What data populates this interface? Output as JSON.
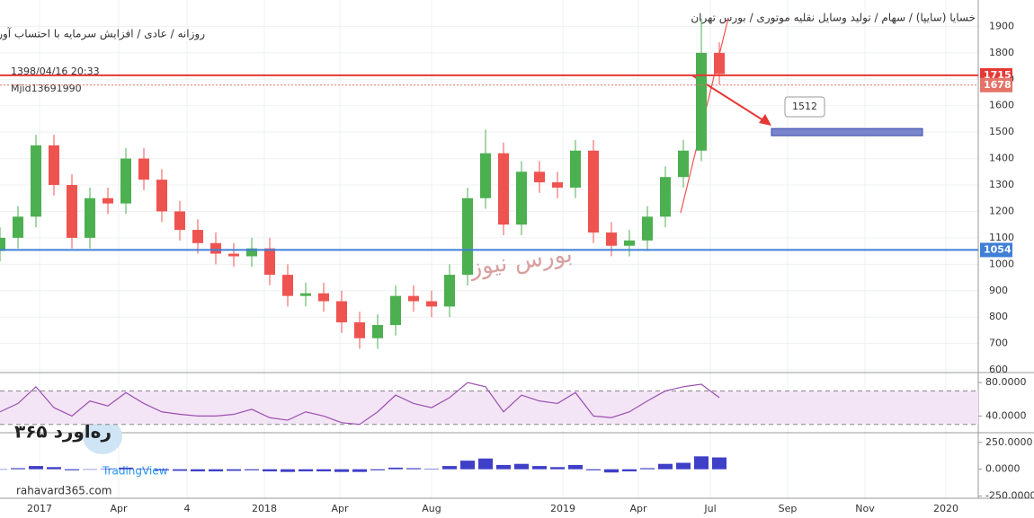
{
  "chart_data": {
    "type": "candlestick",
    "title": "خسایا (سایپا) / سهام / تولید وسایل نقلیه موتوری / بورس تهران",
    "subtitle": "روزانه / عادی / افزایش سرمایه با احتساب آورده",
    "timestamp": "1398/04/16 20:33",
    "author": "Mjid13691990",
    "watermark": "بورس نیوز",
    "logo_text": "ره‌آورد ۳۶۵",
    "logo_url": "rahavard365.com",
    "platform": "TradingView",
    "xlim": [
      0,
      544
    ],
    "xticks": [
      {
        "value": 22,
        "label": "2017"
      },
      {
        "value": 66,
        "label": "Apr"
      },
      {
        "value": 104,
        "label": "4"
      },
      {
        "value": 147,
        "label": "2018"
      },
      {
        "value": 189,
        "label": "Apr"
      },
      {
        "value": 240,
        "label": "Aug"
      },
      {
        "value": 313,
        "label": "2019"
      },
      {
        "value": 355,
        "label": "Apr"
      },
      {
        "value": 395,
        "label": "Jul"
      },
      {
        "value": 438,
        "label": "Sep"
      },
      {
        "value": 481,
        "label": "Nov"
      },
      {
        "value": 526,
        "label": "2020"
      }
    ],
    "x": [
      0,
      10,
      20,
      30,
      40,
      50,
      60,
      70,
      80,
      90,
      100,
      110,
      120,
      130,
      140,
      150,
      160,
      170,
      180,
      190,
      200,
      210,
      220,
      230,
      240,
      250,
      260,
      270,
      280,
      290,
      300,
      310,
      320,
      330,
      340,
      350,
      360,
      370,
      380,
      390,
      400
    ],
    "open": [
      1050,
      1100,
      1180,
      1450,
      1300,
      1100,
      1250,
      1230,
      1400,
      1320,
      1200,
      1130,
      1080,
      1040,
      1030,
      1060,
      960,
      880,
      890,
      860,
      780,
      720,
      770,
      880,
      860,
      840,
      960,
      1250,
      1420,
      1150,
      1350,
      1310,
      1290,
      1430,
      1120,
      1070,
      1090,
      1180,
      1330,
      1430,
      1800
    ],
    "high": [
      1140,
      1220,
      1490,
      1490,
      1340,
      1290,
      1290,
      1440,
      1440,
      1360,
      1240,
      1170,
      1120,
      1080,
      1100,
      1100,
      1000,
      930,
      930,
      900,
      820,
      810,
      920,
      920,
      900,
      1000,
      1290,
      1510,
      1460,
      1390,
      1390,
      1350,
      1470,
      1470,
      1160,
      1130,
      1220,
      1370,
      1470,
      1930,
      1840
    ],
    "low": [
      1010,
      1060,
      1140,
      1260,
      1060,
      1060,
      1190,
      1190,
      1280,
      1160,
      1090,
      1040,
      1000,
      990,
      990,
      920,
      840,
      840,
      820,
      740,
      680,
      680,
      730,
      820,
      800,
      800,
      920,
      1210,
      1110,
      1110,
      1270,
      1250,
      1250,
      1080,
      1030,
      1030,
      1050,
      1140,
      1290,
      1390,
      1680
    ],
    "close": [
      1100,
      1180,
      1450,
      1300,
      1100,
      1250,
      1230,
      1400,
      1320,
      1200,
      1130,
      1080,
      1040,
      1030,
      1060,
      960,
      880,
      890,
      860,
      780,
      720,
      770,
      880,
      860,
      840,
      960,
      1250,
      1420,
      1150,
      1350,
      1310,
      1290,
      1430,
      1120,
      1070,
      1090,
      1180,
      1330,
      1430,
      1800,
      1720
    ],
    "up_color": "#4caf50",
    "down_color": "#ef5350",
    "ylim": [
      590,
      2000
    ],
    "yticks": [
      600,
      700,
      800,
      900,
      1000,
      1100,
      1200,
      1300,
      1400,
      1500,
      1600,
      1700,
      1800,
      1900
    ],
    "price_lines": [
      {
        "value": 1715,
        "color": "#e53935"
      },
      {
        "value": 1678,
        "color": "#e57368"
      },
      {
        "value": 1054,
        "color": "#3f7fd6"
      }
    ],
    "target": {
      "value": 1512,
      "zone": 1500
    },
    "rsi": {
      "values": [
        45,
        55,
        75,
        50,
        40,
        58,
        52,
        68,
        55,
        45,
        42,
        40,
        40,
        42,
        48,
        38,
        35,
        45,
        40,
        32,
        30,
        45,
        65,
        55,
        50,
        62,
        80,
        75,
        45,
        65,
        58,
        55,
        68,
        40,
        38,
        45,
        58,
        70,
        75,
        78,
        62
      ],
      "color": "#9c4fb0",
      "ylim": [
        20,
        92
      ],
      "yticks": [
        {
          "value": 80,
          "label": "80.0000"
        },
        {
          "value": 40,
          "label": "40.0000"
        }
      ],
      "bands": [
        30,
        70
      ]
    },
    "macd": {
      "values": [
        0,
        10,
        30,
        20,
        -10,
        0,
        5,
        15,
        5,
        -10,
        -15,
        -20,
        -20,
        -15,
        -10,
        -20,
        -25,
        -20,
        -20,
        -25,
        -25,
        -10,
        15,
        10,
        5,
        30,
        80,
        100,
        40,
        50,
        30,
        20,
        40,
        -10,
        -30,
        -20,
        10,
        50,
        60,
        120,
        110
      ],
      "color": "#3f3fc8",
      "ylim": [
        -270,
        340
      ],
      "yticks": [
        {
          "value": 250,
          "label": "250.0000"
        },
        {
          "value": 0,
          "label": "0.0000"
        },
        {
          "value": -250,
          "label": "-250.0000"
        }
      ]
    }
  }
}
